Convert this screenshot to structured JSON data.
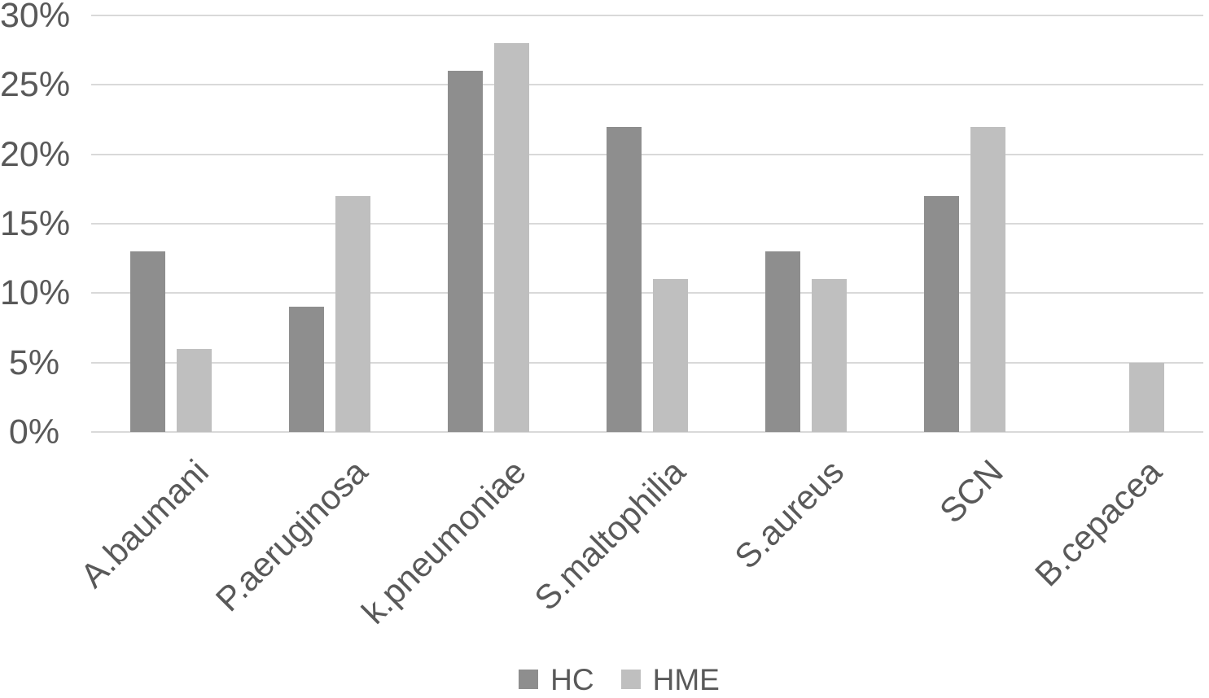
{
  "chart_data": {
    "type": "bar",
    "title": "",
    "categories": [
      "A.baumani",
      "P.aeruginosa",
      "k.pneumoniae",
      "S.maltophilia",
      "S.aureus",
      "SCN",
      "B.cepacea"
    ],
    "series": [
      {
        "name": "HC",
        "color": "#8e8e8e",
        "values": [
          13,
          9,
          26,
          22,
          13,
          17,
          0
        ]
      },
      {
        "name": "HME",
        "color": "#bfbfbf",
        "values": [
          6,
          17,
          28,
          11,
          11,
          22,
          5
        ]
      }
    ],
    "y_axis": {
      "min": 0,
      "max": 30,
      "tick_step": 5,
      "tick_labels": [
        "0%",
        "5%",
        "10%",
        "15%",
        "20%",
        "25%",
        "30%"
      ],
      "grid": true
    },
    "x_axis": {
      "label_rotation_deg": -45
    },
    "legend": {
      "position": "bottom",
      "entries": [
        "HC",
        "HME"
      ]
    }
  },
  "colors": {
    "gridline": "#d9d9d9",
    "text": "#595959",
    "background": "#ffffff"
  }
}
